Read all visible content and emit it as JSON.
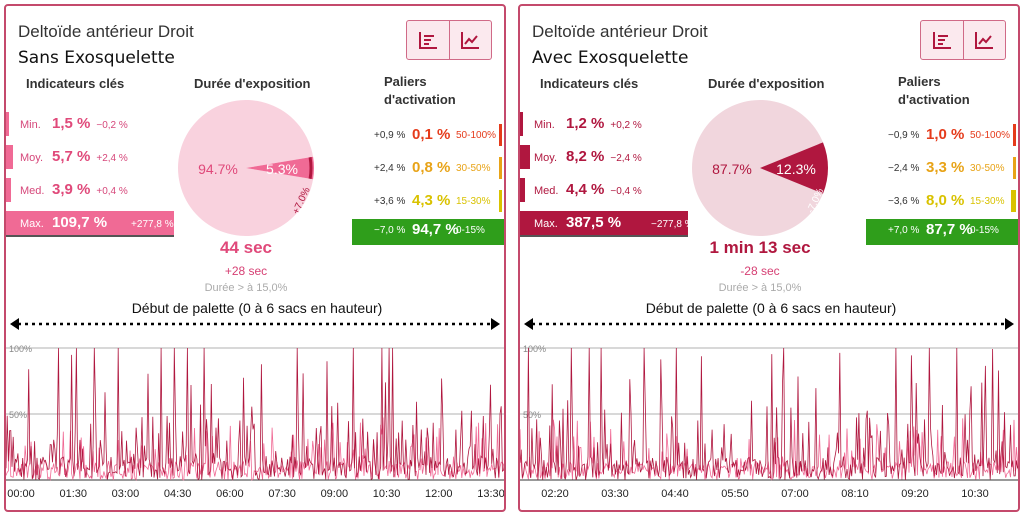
{
  "colors": {
    "pink_light": "#f7d0dc",
    "pink_mid": "#f06a95",
    "crimson": "#b0173f",
    "orange": "#e8a317",
    "red": "#e53b1b",
    "green": "#2f9e1b"
  },
  "panels": [
    {
      "title": "Deltoïde antérieur Droit",
      "subtitle": "Sans Exosquelette",
      "headers": {
        "indicators": "Indicateurs clés",
        "duration": "Durée d'exposition",
        "paliers_1": "Paliers",
        "paliers_2": "d'activation"
      },
      "indicators": [
        {
          "label": "Min.",
          "value": "1,5 %",
          "delta": "−0,2 %",
          "level": 0.015
        },
        {
          "label": "Moy.",
          "value": "5,7 %",
          "delta": "+2,4 %",
          "level": 0.057
        },
        {
          "label": "Med.",
          "value": "3,9 %",
          "delta": "+0,4 %",
          "level": 0.039
        },
        {
          "label": "Max.",
          "value": "109,7 %",
          "delta": "+277,8 %",
          "level": 1.097
        }
      ],
      "pie": {
        "slices": [
          94.7,
          5.3
        ],
        "labels": [
          "94.7%",
          "5.3%",
          "+7.0%"
        ]
      },
      "duration": {
        "value": "44 sec",
        "delta": "+28 sec",
        "note": "Durée > à 15,0%"
      },
      "paliers": [
        {
          "delta": "+0,9 %",
          "value": "0,1 %",
          "range": "50-100%",
          "color": "#e53b1b",
          "level": 0.001
        },
        {
          "delta": "+2,4 %",
          "value": "0,8 %",
          "range": "30-50%",
          "color": "#e8a317",
          "level": 0.008
        },
        {
          "delta": "+3,6 %",
          "value": "4,3 %",
          "range": "15-30%",
          "color": "#d9c200",
          "level": 0.043
        },
        {
          "delta": "−7,0 %",
          "value": "94,7 %",
          "range": "0-15%",
          "color": "#2f9e1b",
          "level": 0.947
        }
      ],
      "segment_title": "Début de palette (0 à 6 sacs en hauteur)",
      "chart_y_labels": [
        "100%",
        "50%"
      ],
      "chart_data": {
        "type": "line",
        "x": [
          "00:00",
          "01:30",
          "03:00",
          "04:30",
          "06:00",
          "07:30",
          "09:00",
          "10:30",
          "12:00",
          "13:30"
        ],
        "ylim": [
          0,
          100
        ],
        "seed": 7,
        "mean": 5.7,
        "max": 109.7,
        "n": 420
      }
    },
    {
      "title": "Deltoïde antérieur Droit",
      "subtitle": "Avec Exosquelette",
      "headers": {
        "indicators": "Indicateurs clés",
        "duration": "Durée d'exposition",
        "paliers_1": "Paliers",
        "paliers_2": "d'activation"
      },
      "indicators": [
        {
          "label": "Min.",
          "value": "1,2 %",
          "delta": "+0,2 %",
          "level": 0.012
        },
        {
          "label": "Moy.",
          "value": "8,2 %",
          "delta": "−2,4 %",
          "level": 0.082
        },
        {
          "label": "Med.",
          "value": "4,4 %",
          "delta": "−0,4 %",
          "level": 0.044
        },
        {
          "label": "Max.",
          "value": "387,5 %",
          "delta": "−277,8 %",
          "level": 3.875
        }
      ],
      "pie": {
        "slices": [
          87.7,
          12.3
        ],
        "labels": [
          "87.7%",
          "12.3%",
          "-7.0%"
        ]
      },
      "duration": {
        "value": "1 min 13 sec",
        "delta": "-28 sec",
        "note": "Durée > à 15,0%"
      },
      "paliers": [
        {
          "delta": "−0,9 %",
          "value": "1,0 %",
          "range": "50-100%",
          "color": "#e53b1b",
          "level": 0.01
        },
        {
          "delta": "−2,4 %",
          "value": "3,3 %",
          "range": "30-50%",
          "color": "#e8a317",
          "level": 0.033
        },
        {
          "delta": "−3,6 %",
          "value": "8,0 %",
          "range": "15-30%",
          "color": "#d9c200",
          "level": 0.08
        },
        {
          "delta": "+7,0 %",
          "value": "87,7 %",
          "range": "0-15%",
          "color": "#2f9e1b",
          "level": 0.877
        }
      ],
      "segment_title": "Début de palette (0 à 6 sacs en hauteur)",
      "chart_y_labels": [
        "100%",
        "50%"
      ],
      "chart_data": {
        "type": "line",
        "x": [
          "02:20",
          "03:30",
          "04:40",
          "05:50",
          "07:00",
          "08:10",
          "09:20",
          "10:30"
        ],
        "ylim": [
          0,
          100
        ],
        "seed": 13,
        "mean": 8.2,
        "max": 387.5,
        "n": 420
      }
    }
  ]
}
